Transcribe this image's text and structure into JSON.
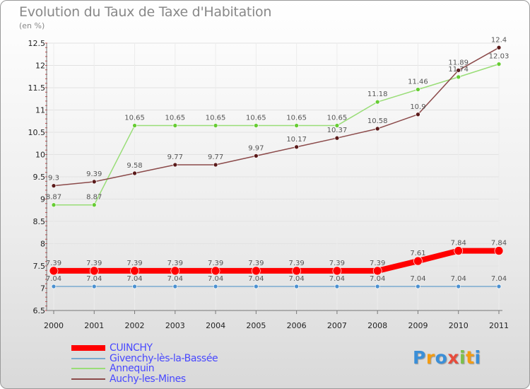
{
  "title": "Evolution du Taux de Taxe d'Habitation",
  "subtitle": "(en %)",
  "logo": "Proxiti",
  "chart_data": {
    "type": "line",
    "x": [
      "2000",
      "2001",
      "2002",
      "2003",
      "2004",
      "2005",
      "2006",
      "2007",
      "2008",
      "2009",
      "2010",
      "2011"
    ],
    "yticks": [
      "6.5",
      "7",
      "7.5",
      "8",
      "8.5",
      "9",
      "9.5",
      "10",
      "10.5",
      "11",
      "11.5",
      "12",
      "12.5"
    ],
    "ylim": [
      6.5,
      12.5
    ],
    "grid": true,
    "legend_position": "bottom-left",
    "series": [
      {
        "name": "CUINCHY",
        "color": "#ff0000",
        "marker": "#ff0000",
        "width": 8,
        "values": [
          7.39,
          7.39,
          7.39,
          7.39,
          7.39,
          7.39,
          7.39,
          7.39,
          7.39,
          7.61,
          7.84,
          7.84
        ],
        "labels": [
          "7.39",
          "7.39",
          "7.39",
          "7.39",
          "7.39",
          "7.39",
          "7.39",
          "7.39",
          "7.39",
          "7.61",
          "7.84",
          "7.84"
        ]
      },
      {
        "name": "Givenchy-lès-la-Bassée",
        "color": "#7aaad0",
        "marker": "#4a90d0",
        "width": 1.5,
        "values": [
          7.04,
          7.04,
          7.04,
          7.04,
          7.04,
          7.04,
          7.04,
          7.04,
          7.04,
          7.04,
          7.04,
          7.04
        ],
        "labels": [
          "7.04",
          "7.04",
          "7.04",
          "7.04",
          "7.04",
          "7.04",
          "7.04",
          "7.04",
          "7.04",
          "7.04",
          "7.04",
          "7.04"
        ]
      },
      {
        "name": "Annequin",
        "color": "#99dd77",
        "marker": "#66cc33",
        "width": 1.5,
        "values": [
          8.87,
          8.87,
          10.65,
          10.65,
          10.65,
          10.65,
          10.65,
          10.65,
          11.18,
          11.46,
          11.74,
          12.03
        ],
        "labels": [
          "8.87",
          "8.87",
          "10.65",
          "10.65",
          "10.65",
          "10.65",
          "10.65",
          "10.65",
          "11.18",
          "11.46",
          "11.74",
          "12.03"
        ]
      },
      {
        "name": "Auchy-les-Mines",
        "color": "#8b4a4a",
        "marker": "#5a1a1a",
        "width": 1.5,
        "values": [
          9.3,
          9.39,
          9.58,
          9.77,
          9.77,
          9.97,
          10.17,
          10.37,
          10.58,
          10.9,
          11.89,
          12.4
        ],
        "labels": [
          "9.3",
          "9.39",
          "9.58",
          "9.77",
          "9.77",
          "9.97",
          "10.17",
          "10.37",
          "10.58",
          "10.9",
          "11.89",
          "12.4"
        ]
      }
    ]
  }
}
